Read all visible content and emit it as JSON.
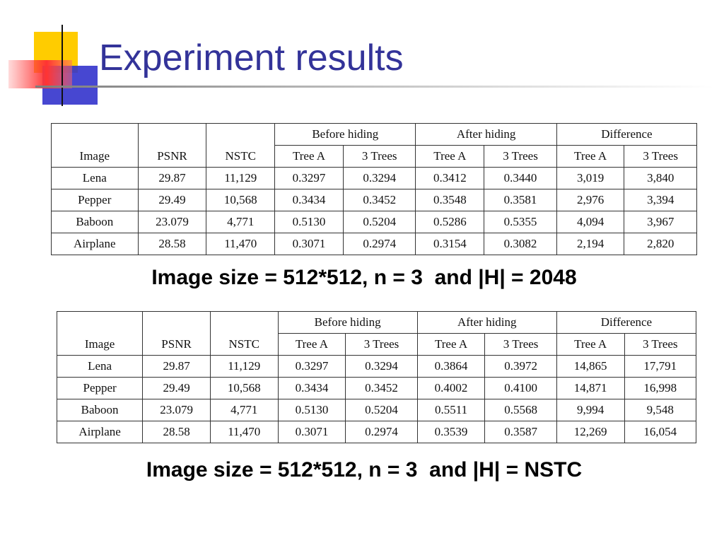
{
  "title": "Experiment results",
  "tables": [
    {
      "group_headers": [
        "Before hiding",
        "After hiding",
        "Difference"
      ],
      "column_headers": [
        "Image",
        "PSNR",
        "NSTC",
        "Tree A",
        "3 Trees",
        "Tree A",
        "3 Trees",
        "Tree A",
        "3 Trees"
      ],
      "rows": [
        [
          "Lena",
          "29.87",
          "11,129",
          "0.3297",
          "0.3294",
          "0.3412",
          "0.3440",
          "3,019",
          "3,840"
        ],
        [
          "Pepper",
          "29.49",
          "10,568",
          "0.3434",
          "0.3452",
          "0.3548",
          "0.3581",
          "2,976",
          "3,394"
        ],
        [
          "Baboon",
          "23.079",
          "4,771",
          "0.5130",
          "0.5204",
          "0.5286",
          "0.5355",
          "4,094",
          "3,967"
        ],
        [
          "Airplane",
          "28.58",
          "11,470",
          "0.3071",
          "0.2974",
          "0.3154",
          "0.3082",
          "2,194",
          "2,820"
        ]
      ],
      "caption": "Image size = 512*512, n = 3  and |H| = 2048"
    },
    {
      "group_headers": [
        "Before hiding",
        "After hiding",
        "Difference"
      ],
      "column_headers": [
        "Image",
        "PSNR",
        "NSTC",
        "Tree A",
        "3 Trees",
        "Tree A",
        "3 Trees",
        "Tree A",
        "3 Trees"
      ],
      "rows": [
        [
          "Lena",
          "29.87",
          "11,129",
          "0.3297",
          "0.3294",
          "0.3864",
          "0.3972",
          "14,865",
          "17,791"
        ],
        [
          "Pepper",
          "29.49",
          "10,568",
          "0.3434",
          "0.3452",
          "0.4002",
          "0.4100",
          "14,871",
          "16,998"
        ],
        [
          "Baboon",
          "23.079",
          "4,771",
          "0.5130",
          "0.5204",
          "0.5511",
          "0.5568",
          "9,994",
          "9,548"
        ],
        [
          "Airplane",
          "28.58",
          "11,470",
          "0.3071",
          "0.2974",
          "0.3539",
          "0.3587",
          "12,269",
          "16,054"
        ]
      ],
      "caption": "Image size = 512*512, n = 3  and |H| = NSTC"
    }
  ]
}
